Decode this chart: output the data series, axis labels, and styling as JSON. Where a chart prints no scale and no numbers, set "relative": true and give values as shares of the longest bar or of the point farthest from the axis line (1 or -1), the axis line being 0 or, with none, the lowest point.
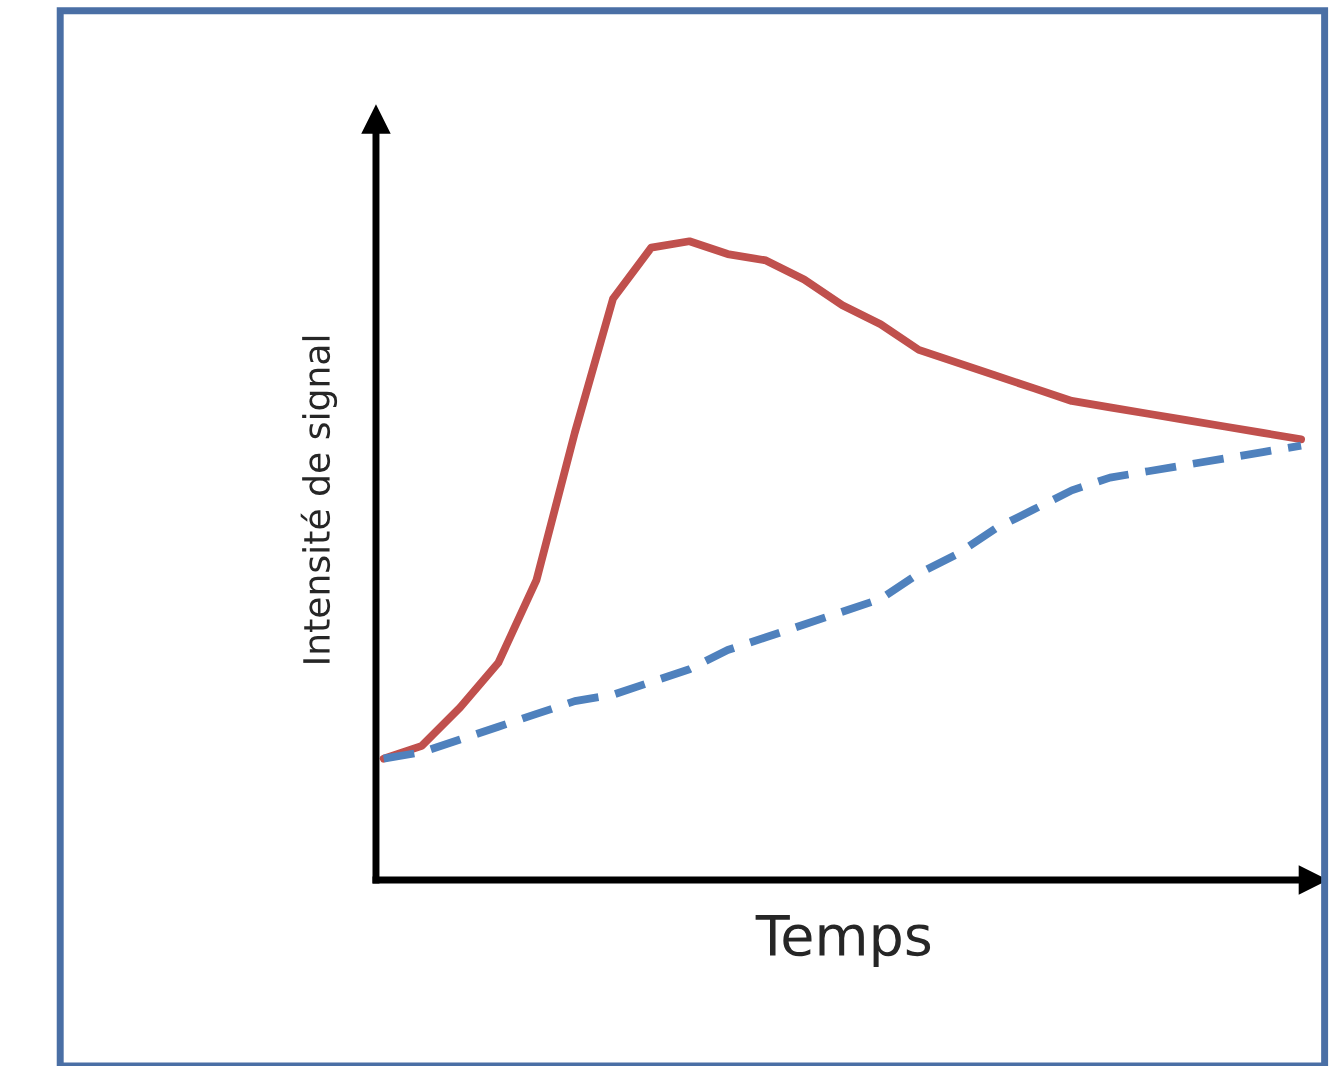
{
  "chart_data": {
    "type": "line",
    "relative": true,
    "xlabel": "Temps",
    "ylabel": "Intensité de signal",
    "legend": false,
    "categories": [
      null,
      null,
      null,
      null,
      null,
      null,
      null,
      null,
      null,
      null,
      null,
      null,
      null,
      null,
      null,
      null,
      null,
      null,
      null,
      null,
      null,
      null,
      null,
      null,
      null
    ],
    "series": [
      {
        "color": "#c0504d",
        "line_style": "solid",
        "values": [
          0.19,
          0.21,
          0.27,
          0.34,
          0.47,
          0.7,
          0.91,
          0.99,
          1.0,
          0.98,
          0.97,
          0.94,
          0.9,
          0.87,
          0.83,
          0.81,
          0.79,
          0.77,
          0.75,
          0.74,
          0.73,
          0.72,
          0.71,
          0.7,
          0.69
        ]
      },
      {
        "color": "#4f81bd",
        "line_style": "dashed",
        "values": [
          0.19,
          0.2,
          0.22,
          0.24,
          0.26,
          0.28,
          0.29,
          0.31,
          0.33,
          0.36,
          0.38,
          0.4,
          0.42,
          0.44,
          0.48,
          0.51,
          0.55,
          0.58,
          0.61,
          0.63,
          0.64,
          0.65,
          0.66,
          0.67,
          0.68
        ]
      }
    ]
  }
}
